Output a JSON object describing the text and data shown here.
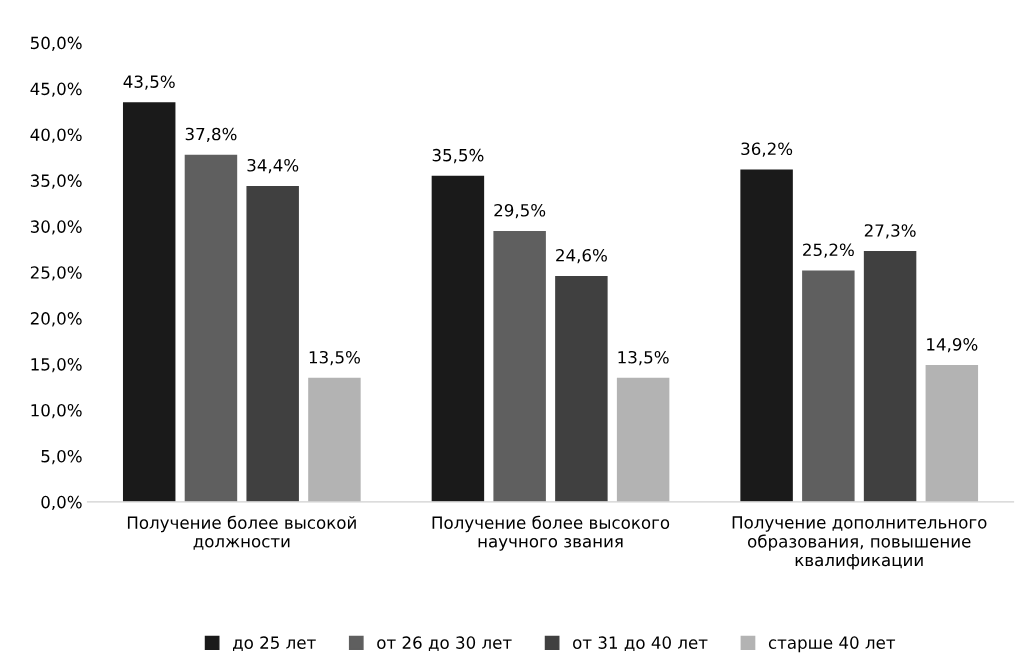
{
  "chart_data": {
    "type": "bar",
    "categories": [
      "Получение более высокой\nдолжности",
      "Получение более высокого\nнаучного звания",
      "Получение дополнительного\nобразования, повышение\nквалификации"
    ],
    "series": [
      {
        "name": "до 25 лет",
        "color": "#1a1a1a",
        "values": [
          43.5,
          35.5,
          36.2
        ],
        "value_labels": [
          "43,5%",
          "35,5%",
          "36,2%"
        ]
      },
      {
        "name": "от 26 до 30 лет",
        "color": "#5f5f5f",
        "values": [
          37.8,
          29.5,
          25.2
        ],
        "value_labels": [
          "37,8%",
          "29,5%",
          "25,2%"
        ]
      },
      {
        "name": "от 31 до 40 лет",
        "color": "#404040",
        "values": [
          34.4,
          24.6,
          27.3
        ],
        "value_labels": [
          "34,4%",
          "24,6%",
          "27,3%"
        ]
      },
      {
        "name": "старше 40 лет",
        "color": "#b3b3b3",
        "values": [
          13.5,
          13.5,
          14.9
        ],
        "value_labels": [
          "13,5%",
          "13,5%",
          "14,9%"
        ]
      }
    ],
    "ylim": [
      0,
      50
    ],
    "yticks": [
      {
        "value": 0,
        "label": "0,0%"
      },
      {
        "value": 5,
        "label": "5,0%"
      },
      {
        "value": 10,
        "label": "10,0%"
      },
      {
        "value": 15,
        "label": "15,0%"
      },
      {
        "value": 20,
        "label": "20,0%"
      },
      {
        "value": 25,
        "label": "25,0%"
      },
      {
        "value": 30,
        "label": "30,0%"
      },
      {
        "value": 35,
        "label": "35,0%"
      },
      {
        "value": 40,
        "label": "40,0%"
      },
      {
        "value": 45,
        "label": "45,0%"
      },
      {
        "value": 50,
        "label": "50,0%"
      }
    ],
    "grid": false,
    "legend": "bottom"
  }
}
